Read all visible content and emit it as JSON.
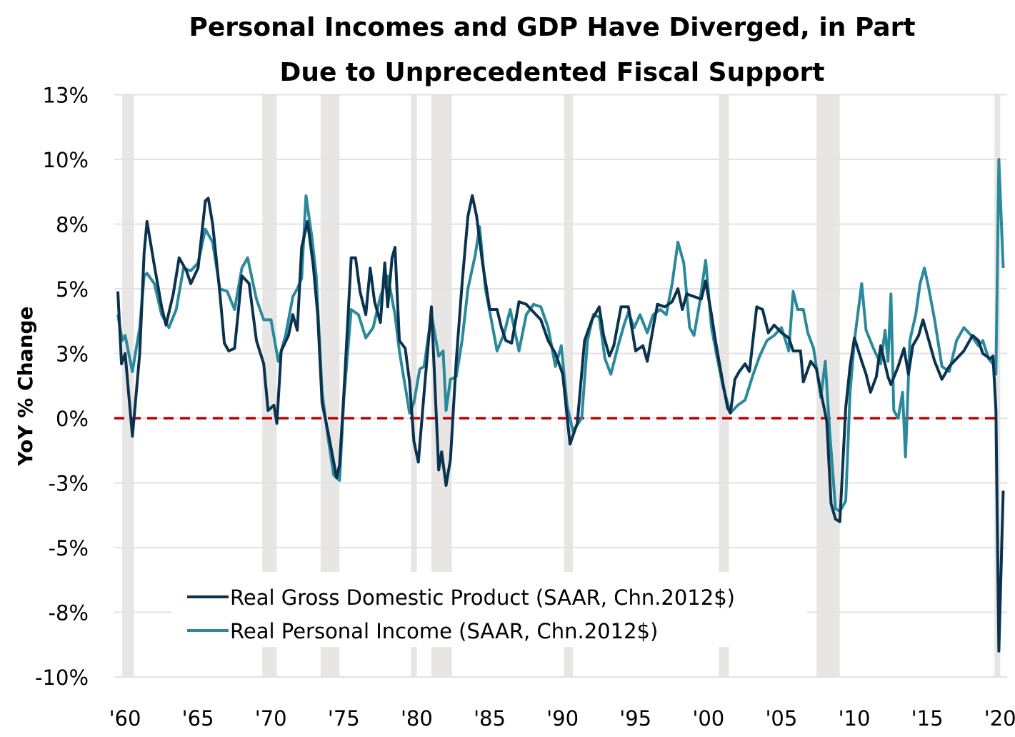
{
  "chart_data": {
    "type": "line",
    "title": "Personal Incomes and GDP Have Diverged, in Part Due to Unprecedented Fiscal Support",
    "title_lines": [
      "Personal Incomes and GDP Have Diverged, in Part",
      "Due to Unprecedented Fiscal Support"
    ],
    "ylabel": "YoY % Change",
    "xlabel": "",
    "ylim": [
      -10,
      12.5
    ],
    "xlim": [
      1960,
      2021
    ],
    "yticks": [
      12.5,
      10,
      7.5,
      5,
      2.5,
      0,
      -2.5,
      -5,
      -7.5,
      -10
    ],
    "ytick_labels": [
      "13%",
      "10%",
      "8%",
      "5%",
      "3%",
      "0%",
      "-3%",
      "-5%",
      "-8%",
      "-10%"
    ],
    "xticks": [
      1960,
      1965,
      1970,
      1975,
      1980,
      1985,
      1990,
      1995,
      2000,
      2005,
      2010,
      2015,
      2020
    ],
    "xtick_labels": [
      "'60",
      "'65",
      "'70",
      "'75",
      "'80",
      "'85",
      "'90",
      "'95",
      "'00",
      "'05",
      "'10",
      "'15",
      "'20"
    ],
    "grid": true,
    "legend_position": "bottom-left",
    "reference_line": {
      "y": 0,
      "color": "#c00000",
      "style": "dashed"
    },
    "recessions": [
      [
        1960.3,
        1961.1
      ],
      [
        1969.9,
        1970.9
      ],
      [
        1973.9,
        1975.2
      ],
      [
        1980.1,
        1980.5
      ],
      [
        1981.5,
        1982.9
      ],
      [
        1990.6,
        1991.2
      ],
      [
        2001.2,
        2001.9
      ],
      [
        2007.9,
        2009.5
      ],
      [
        2020.1,
        2020.5
      ]
    ],
    "series": [
      {
        "name": "Real Gross Domestic Product (SAAR, Chn.2012$)",
        "color": "#0b3350",
        "x": [
          1960,
          1960.25,
          1960.5,
          1961,
          1961.5,
          1961.8,
          1962,
          1962.5,
          1963,
          1963.3,
          1963.8,
          1964.2,
          1964.7,
          1965,
          1965.5,
          1966,
          1966.2,
          1966.5,
          1967,
          1967.3,
          1967.6,
          1968,
          1968.5,
          1969,
          1969.5,
          1970,
          1970.3,
          1970.7,
          1970.9,
          1971.2,
          1971.7,
          1972,
          1972.3,
          1972.6,
          1973,
          1973.4,
          1973.7,
          1974,
          1974.4,
          1974.7,
          1975,
          1975.2,
          1975.5,
          1976,
          1976.3,
          1976.6,
          1977,
          1977.3,
          1977.6,
          1978,
          1978.3,
          1978.5,
          1978.8,
          1979,
          1979.3,
          1979.7,
          1980,
          1980.3,
          1980.6,
          1981,
          1981.5,
          1982,
          1982.2,
          1982.5,
          1982.8,
          1983.2,
          1983.6,
          1984,
          1984.3,
          1984.6,
          1985,
          1985.5,
          1986,
          1986.3,
          1986.6,
          1987,
          1987.5,
          1988,
          1988.5,
          1989,
          1989.5,
          1990,
          1990.5,
          1991,
          1991.5,
          1992,
          1992.5,
          1993,
          1993.3,
          1993.7,
          1994,
          1994.5,
          1995,
          1995.5,
          1996,
          1996.3,
          1996.7,
          1997,
          1997.5,
          1998,
          1998.4,
          1998.7,
          1999,
          1999.5,
          2000,
          2000.3,
          2000.7,
          2001,
          2001.5,
          2001.8,
          2002,
          2002.3,
          2002.6,
          2003,
          2003.3,
          2003.8,
          2004.2,
          2004.6,
          2005,
          2005.5,
          2006,
          2006.3,
          2006.8,
          2007,
          2007.5,
          2007.9,
          2008.2,
          2008.6,
          2008.9,
          2009.2,
          2009.5,
          2009.9,
          2010.2,
          2010.5,
          2011,
          2011.3,
          2011.6,
          2012,
          2012.3,
          2012.8,
          2013,
          2013.5,
          2013.9,
          2014.2,
          2014.5,
          2014.9,
          2015.2,
          2015.6,
          2016,
          2016.5,
          2017,
          2017.5,
          2018,
          2018.6,
          2019,
          2019.3,
          2019.8,
          2020,
          2020.2,
          2020.4,
          2020.7
        ],
        "values": [
          4.9,
          2.1,
          2.5,
          -0.7,
          2.5,
          6.4,
          7.6,
          5.9,
          4.3,
          3.6,
          4.8,
          6.2,
          5.7,
          5.2,
          5.8,
          8.4,
          8.5,
          7.5,
          4.8,
          2.9,
          2.6,
          2.7,
          5.5,
          5.2,
          3.0,
          2.1,
          0.3,
          0.5,
          -0.2,
          2.6,
          3.2,
          4.0,
          3.4,
          6.6,
          7.6,
          5.9,
          4.0,
          0.6,
          -0.5,
          -1.4,
          -2.3,
          -1.8,
          1.0,
          6.2,
          6.2,
          4.9,
          4.0,
          5.8,
          4.5,
          3.7,
          6.0,
          4.3,
          6.2,
          6.6,
          3.0,
          2.7,
          1.4,
          -0.9,
          -1.7,
          1.0,
          4.3,
          -2.0,
          -1.3,
          -2.6,
          -1.6,
          2.2,
          5.2,
          7.8,
          8.6,
          7.8,
          6.0,
          4.2,
          4.2,
          3.5,
          3.0,
          2.9,
          4.5,
          4.4,
          4.1,
          3.8,
          3.0,
          2.5,
          1.7,
          -1.0,
          -0.2,
          3.0,
          3.8,
          4.3,
          3.2,
          2.4,
          2.8,
          4.3,
          4.3,
          2.6,
          2.8,
          2.2,
          3.5,
          4.4,
          4.3,
          4.5,
          5.0,
          4.2,
          4.8,
          4.7,
          4.6,
          5.3,
          4.0,
          2.9,
          1.3,
          0.4,
          0.2,
          1.5,
          1.8,
          2.1,
          1.8,
          4.3,
          4.2,
          3.3,
          3.6,
          3.3,
          3.1,
          2.6,
          2.6,
          1.4,
          2.2,
          1.9,
          1.0,
          -0.1,
          -3.3,
          -3.9,
          -4.0,
          0.4,
          2.0,
          3.1,
          2.2,
          1.7,
          1.0,
          1.6,
          2.8,
          1.6,
          1.3,
          2.0,
          2.7,
          1.7,
          2.8,
          3.2,
          3.8,
          3.0,
          2.2,
          1.5,
          2.0,
          2.3,
          2.6,
          3.2,
          3.0,
          2.5,
          2.3,
          2.4,
          0.3,
          -9.0,
          -2.8
        ]
      },
      {
        "name": "Real Personal Income (SAAR, Chn.2012$)",
        "color": "#2a8a9c",
        "x": [
          1960,
          1960.3,
          1960.5,
          1961,
          1961.5,
          1961.8,
          1962,
          1962.5,
          1963,
          1963.5,
          1964,
          1964.5,
          1965,
          1965.5,
          1966,
          1966.5,
          1967,
          1967.5,
          1968,
          1968.5,
          1968.9,
          1969.5,
          1970,
          1970.5,
          1971,
          1971.5,
          1972,
          1972.3,
          1972.6,
          1972.9,
          1973.3,
          1973.6,
          1974,
          1974.4,
          1974.8,
          1975.2,
          1975.5,
          1976,
          1976.5,
          1977,
          1977.5,
          1978,
          1978.5,
          1979,
          1979.3,
          1980,
          1980.3,
          1980.7,
          1981,
          1981.5,
          1982,
          1982.3,
          1982.5,
          1982.8,
          1983.2,
          1983.6,
          1984,
          1984.5,
          1984.8,
          1985.2,
          1985.6,
          1986,
          1986.5,
          1986.9,
          1987.5,
          1988,
          1988.5,
          1989,
          1989.5,
          1990,
          1990.4,
          1990.8,
          1991.2,
          1991.8,
          1992.2,
          1992.6,
          1993,
          1993.4,
          1993.8,
          1994.3,
          1994.7,
          1995,
          1995.4,
          1995.8,
          1996.3,
          1996.7,
          1997.2,
          1997.6,
          1998,
          1998.4,
          1998.8,
          1999.2,
          1999.5,
          1999.9,
          2000.3,
          2000.7,
          2001,
          2001.5,
          2002,
          2002.5,
          2003,
          2003.5,
          2004,
          2004.5,
          2005,
          2005.5,
          2006,
          2006.3,
          2006.6,
          2007,
          2007.3,
          2007.7,
          2008.2,
          2008.5,
          2008.8,
          2009.2,
          2009.5,
          2009.9,
          2010.2,
          2010.5,
          2011,
          2011.3,
          2011.8,
          2012.3,
          2012.6,
          2012.8,
          2013,
          2013.2,
          2013.5,
          2013.8,
          2014,
          2014.3,
          2014.7,
          2015,
          2015.3,
          2015.6,
          2016,
          2016.5,
          2017,
          2017.5,
          2018,
          2018.5,
          2019,
          2019.3,
          2019.7,
          2020,
          2020.2,
          2020.4,
          2020.7
        ],
        "values": [
          4.0,
          3.0,
          3.2,
          1.8,
          3.5,
          5.5,
          5.6,
          5.2,
          4.0,
          3.5,
          4.2,
          5.8,
          5.7,
          6.0,
          7.3,
          6.8,
          5.0,
          4.9,
          4.2,
          5.8,
          6.2,
          4.6,
          3.8,
          3.8,
          2.2,
          3.2,
          4.7,
          5.0,
          5.4,
          8.6,
          7.0,
          5.5,
          1.0,
          -0.7,
          -2.2,
          -2.4,
          0.8,
          4.2,
          4.0,
          3.1,
          3.5,
          4.7,
          5.5,
          4.0,
          2.6,
          0.2,
          0.6,
          1.9,
          2.0,
          4.0,
          2.4,
          2.6,
          0.3,
          1.5,
          1.6,
          3.0,
          5.0,
          6.3,
          7.4,
          5.0,
          3.8,
          2.6,
          3.3,
          4.2,
          2.6,
          4.0,
          4.4,
          4.3,
          3.5,
          2.0,
          2.8,
          0.5,
          -0.5,
          0.0,
          3.0,
          4.0,
          3.9,
          2.3,
          1.7,
          2.8,
          3.6,
          4.1,
          3.5,
          4.0,
          3.3,
          4.0,
          4.2,
          4.0,
          5.2,
          6.8,
          6.0,
          3.5,
          3.2,
          4.5,
          6.1,
          3.5,
          2.6,
          1.2,
          0.2,
          0.5,
          0.7,
          1.6,
          2.4,
          3.0,
          3.2,
          3.5,
          2.6,
          4.9,
          4.2,
          4.2,
          3.3,
          2.7,
          0.8,
          2.2,
          -0.5,
          -3.5,
          -3.6,
          -3.2,
          1.0,
          3.0,
          5.2,
          3.4,
          2.7,
          2.1,
          3.4,
          2.2,
          4.8,
          0.3,
          0.0,
          1.0,
          -1.5,
          3.0,
          4.0,
          5.2,
          5.8,
          5.0,
          3.8,
          2.0,
          1.8,
          3.0,
          3.5,
          3.2,
          2.8,
          3.0,
          2.3,
          2.1,
          1.7,
          10.0,
          5.8
        ]
      }
    ]
  }
}
